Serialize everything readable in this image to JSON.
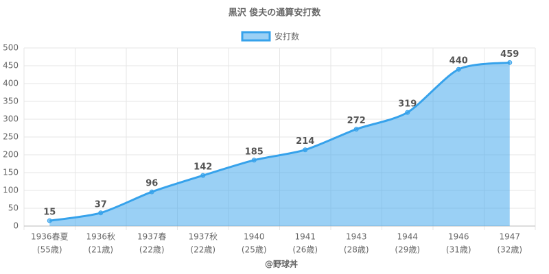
{
  "chart_data": {
    "type": "area",
    "title": "黒沢 俊夫の通算安打数",
    "x_label": "@野球丼",
    "categories": [
      [
        "1936春夏",
        "(55歳)"
      ],
      [
        "1936秋",
        "(21歳)"
      ],
      [
        "1937春",
        "(22歳)"
      ],
      [
        "1937秋",
        "(22歳)"
      ],
      [
        "1940",
        "(25歳)"
      ],
      [
        "1941",
        "(26歳)"
      ],
      [
        "1943",
        "(28歳)"
      ],
      [
        "1944",
        "(29歳)"
      ],
      [
        "1946",
        "(31歳)"
      ],
      [
        "1947",
        "(32歳)"
      ]
    ],
    "series": [
      {
        "name": "安打数",
        "color": "#36a2eb",
        "values": [
          15,
          37,
          96,
          142,
          185,
          214,
          272,
          319,
          440,
          459
        ]
      }
    ],
    "ylim": [
      0,
      500
    ],
    "yticks": [
      0,
      50,
      100,
      150,
      200,
      250,
      300,
      350,
      400,
      450,
      500
    ],
    "grid": true
  }
}
